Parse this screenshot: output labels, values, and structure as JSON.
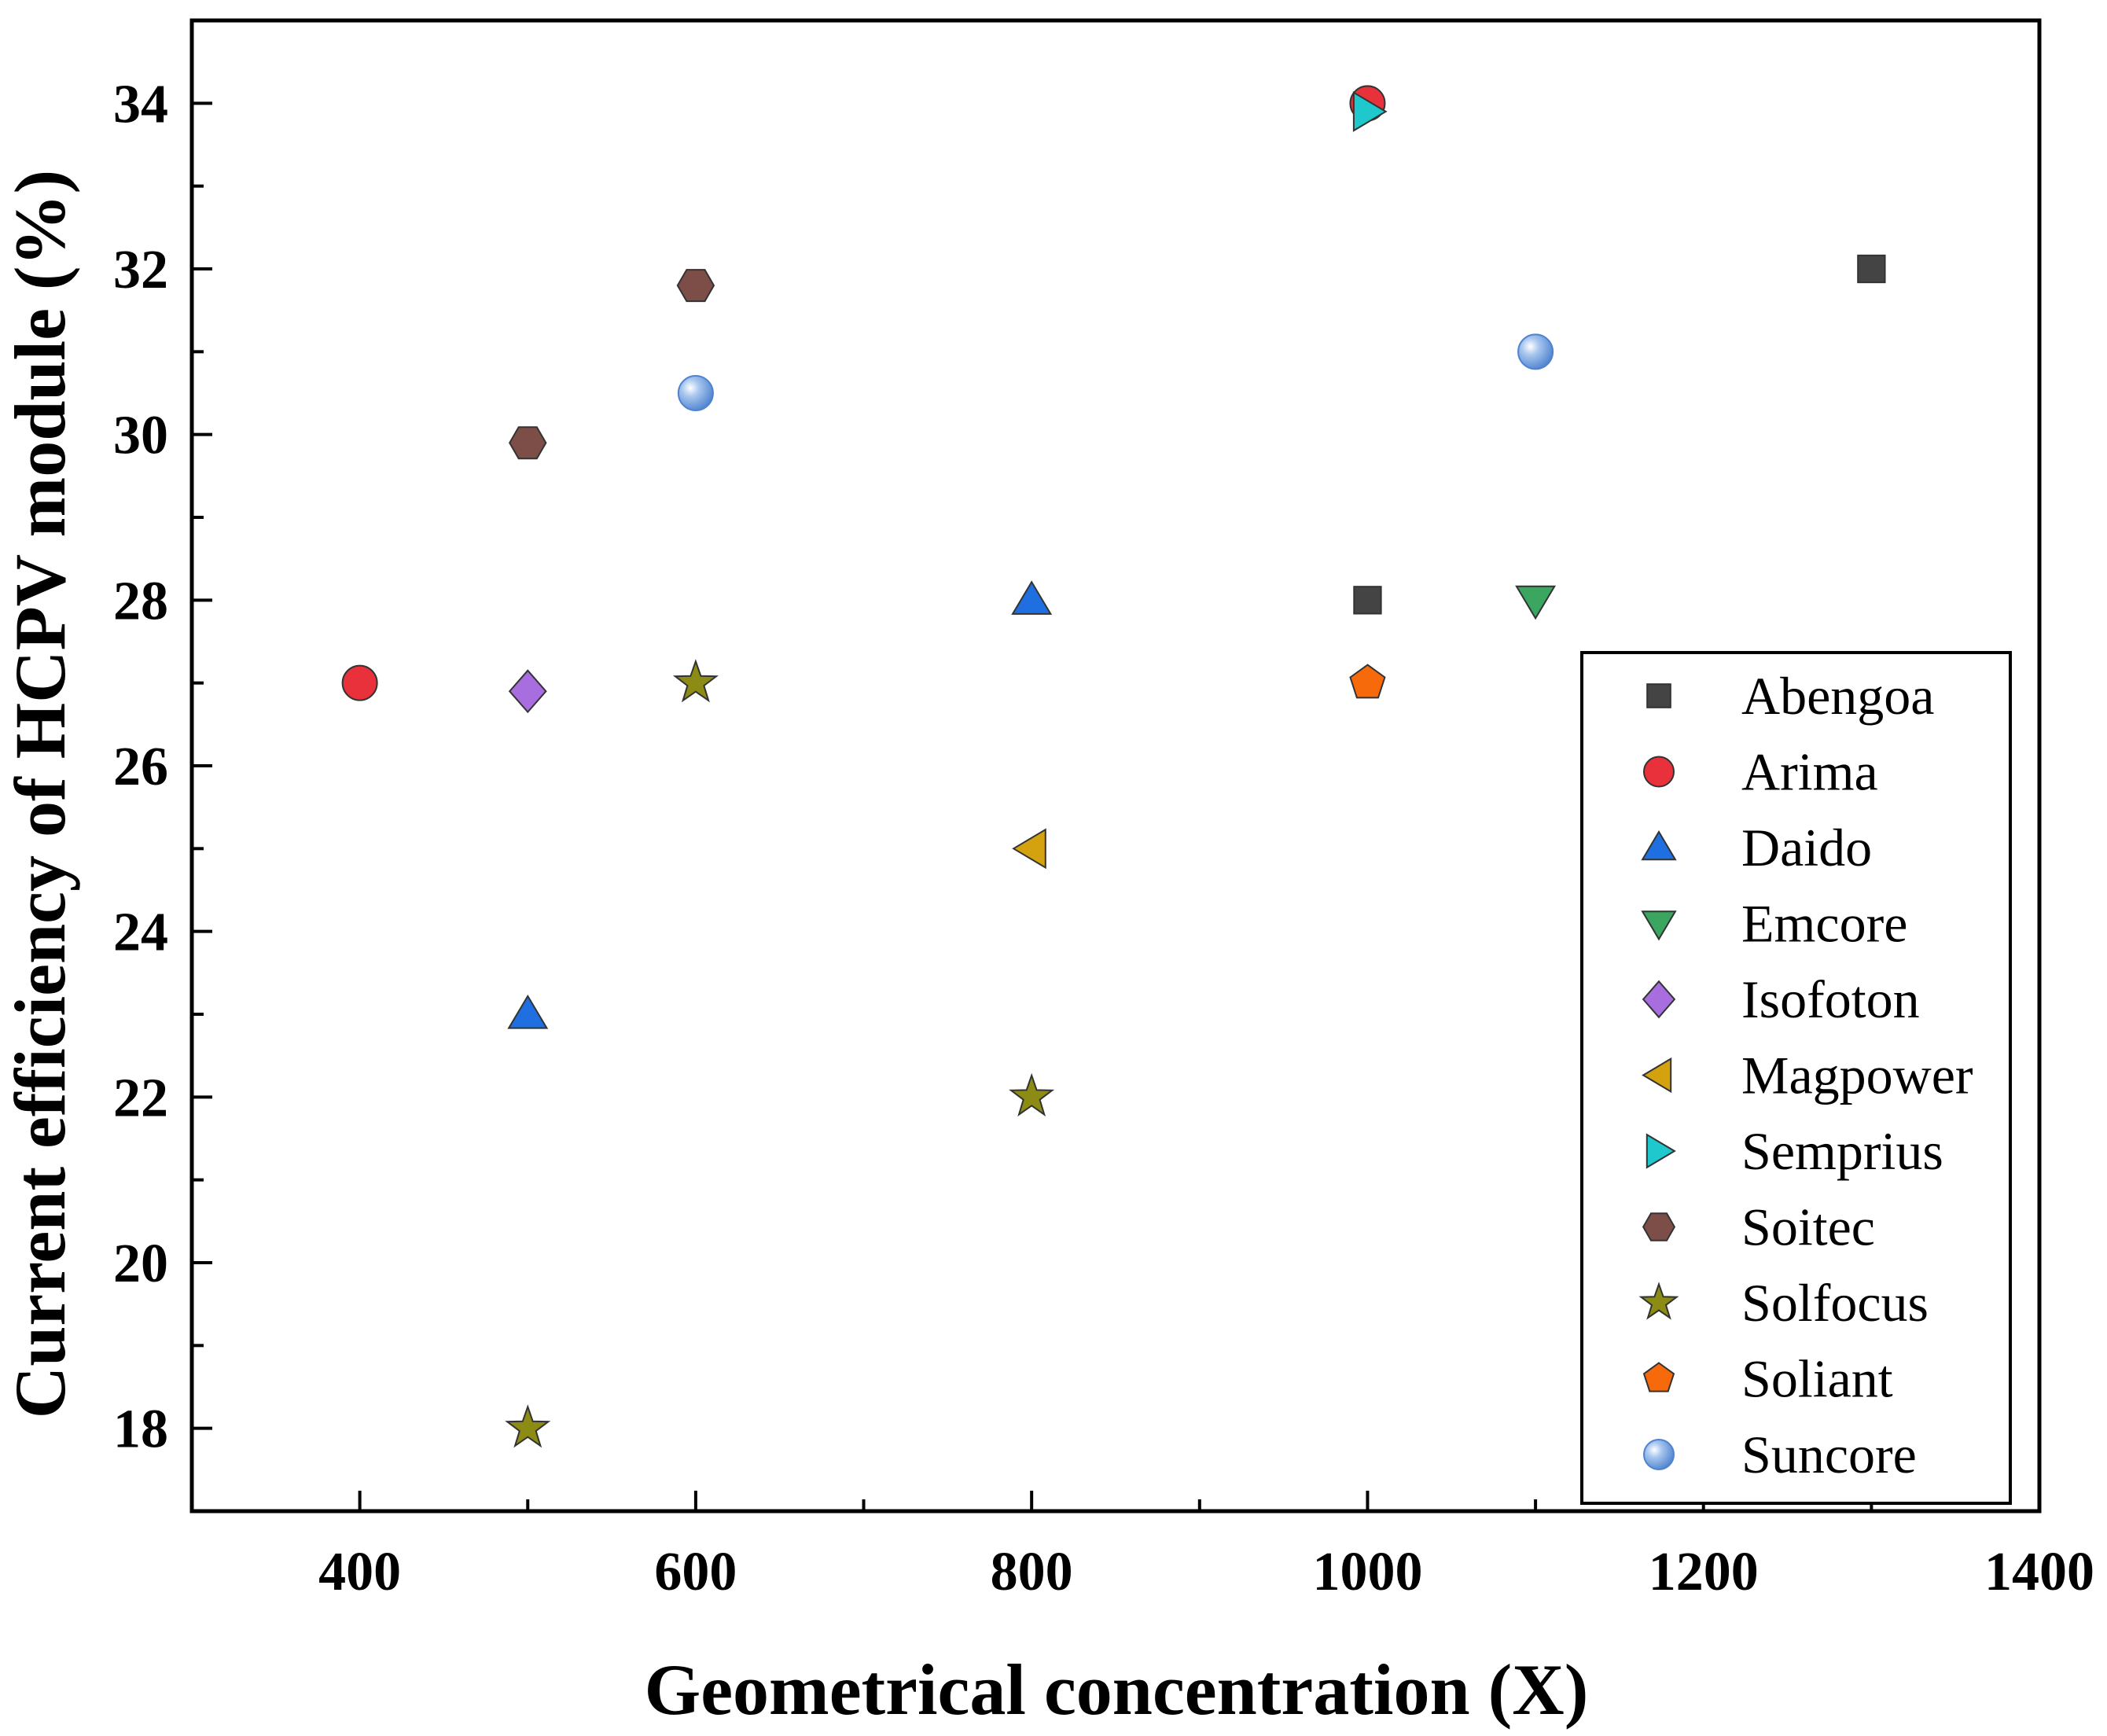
{
  "chart_data": {
    "type": "scatter",
    "title": "",
    "xlabel": "Geometrical concentration (X)",
    "ylabel": "Current efficiency of HCPV module (%)",
    "xlim": [
      300,
      1400
    ],
    "ylim": [
      17,
      35
    ],
    "xticks": [
      400,
      600,
      800,
      1000,
      1200,
      1400
    ],
    "yticks": [
      18,
      20,
      22,
      24,
      26,
      28,
      30,
      32,
      34
    ],
    "legend_position": "bottom-right",
    "series": [
      {
        "name": "Abengoa",
        "marker": "square",
        "color": "#444444",
        "points": [
          {
            "x": 1000,
            "y": 28
          },
          {
            "x": 1300,
            "y": 32
          }
        ]
      },
      {
        "name": "Arima",
        "marker": "circle",
        "color": "#e8313a",
        "points": [
          {
            "x": 400,
            "y": 27
          },
          {
            "x": 1000,
            "y": 34
          }
        ]
      },
      {
        "name": "Daido",
        "marker": "triangle-up",
        "color": "#1f6fe0",
        "points": [
          {
            "x": 500,
            "y": 23
          },
          {
            "x": 800,
            "y": 28
          }
        ]
      },
      {
        "name": "Emcore",
        "marker": "triangle-down",
        "color": "#3aa65f",
        "points": [
          {
            "x": 1100,
            "y": 28
          }
        ]
      },
      {
        "name": "Isofoton",
        "marker": "diamond",
        "color": "#a86ee0",
        "points": [
          {
            "x": 500,
            "y": 26.9
          }
        ]
      },
      {
        "name": "Magpower",
        "marker": "triangle-left",
        "color": "#d4a10f",
        "points": [
          {
            "x": 800,
            "y": 25
          }
        ]
      },
      {
        "name": "Semprius",
        "marker": "triangle-right",
        "color": "#1ec8cc",
        "points": [
          {
            "x": 1000,
            "y": 33.9
          }
        ]
      },
      {
        "name": "Soitec",
        "marker": "hexagon",
        "color": "#7d4e48",
        "points": [
          {
            "x": 500,
            "y": 29.9
          },
          {
            "x": 600,
            "y": 31.8
          }
        ]
      },
      {
        "name": "Solfocus",
        "marker": "star",
        "color": "#8c8c14",
        "points": [
          {
            "x": 500,
            "y": 18
          },
          {
            "x": 600,
            "y": 27
          },
          {
            "x": 800,
            "y": 22
          }
        ]
      },
      {
        "name": "Soliant",
        "marker": "pentagon",
        "color": "#f76a0c",
        "points": [
          {
            "x": 1000,
            "y": 27
          }
        ]
      },
      {
        "name": "Suncore",
        "marker": "sphere",
        "color": "#6b9de0",
        "points": [
          {
            "x": 600,
            "y": 30.5
          },
          {
            "x": 1100,
            "y": 31
          }
        ]
      }
    ]
  }
}
